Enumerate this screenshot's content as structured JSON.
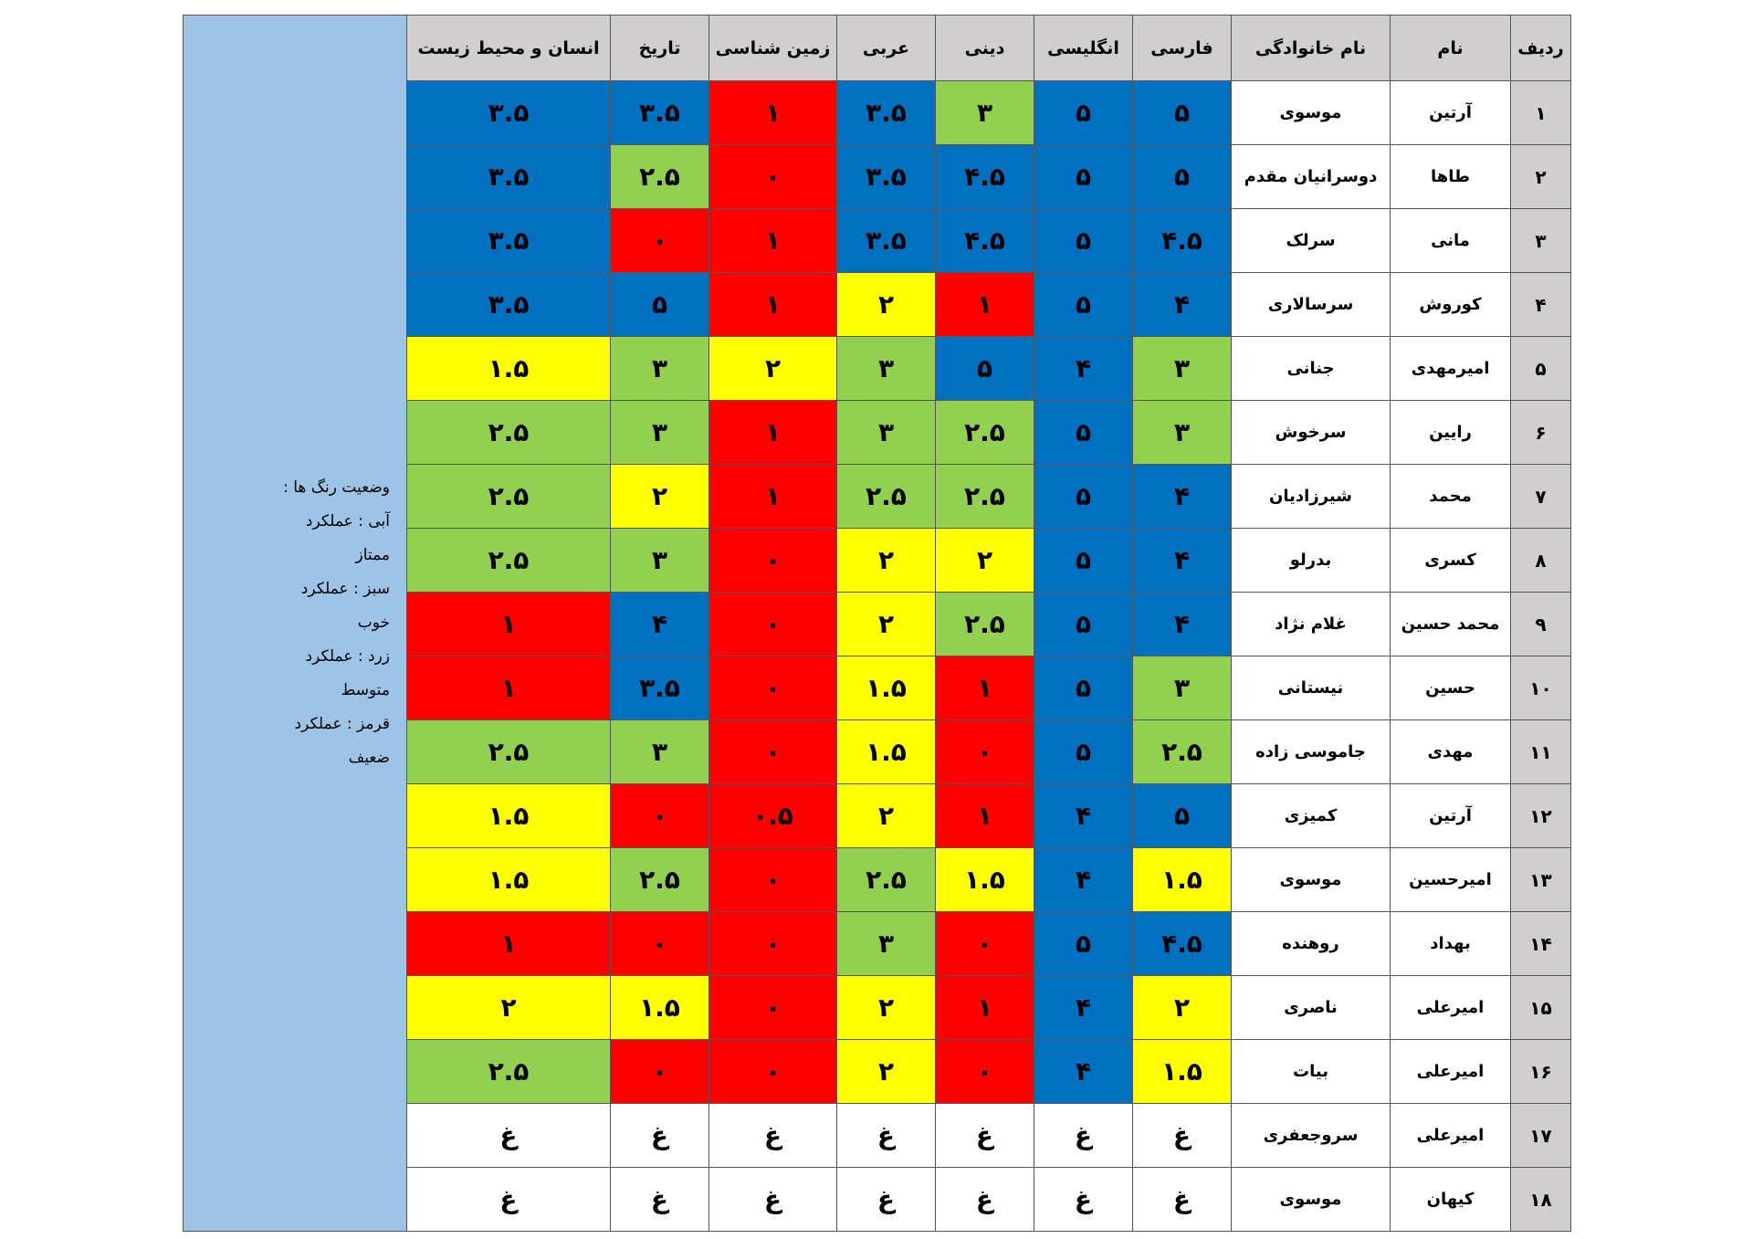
{
  "table": {
    "headers": [
      "ردیف",
      "نام",
      "نام خانوادگی",
      "فارسی",
      "انگلیسی",
      "دینی",
      "عربی",
      "زمین شناسی",
      "تاریخ",
      "انسان و محیط زیست"
    ],
    "palette": {
      "b": "#0070c0",
      "g": "#92d050",
      "y": "#ffff00",
      "r": "#ff0000",
      "w": "#ffffff"
    },
    "rows": [
      {
        "cells": [
          "۱",
          "آرتین",
          "موسوی",
          "۵",
          "۵",
          "۳",
          "۳.۵",
          "۱",
          "۳.۵",
          "۳.۵"
        ],
        "colors": [
          "b",
          "b",
          "g",
          "b",
          "r",
          "b",
          "b"
        ]
      },
      {
        "cells": [
          "۲",
          "طاها",
          "دوسرانیان مقدم",
          "۵",
          "۵",
          "۴.۵",
          "۳.۵",
          "۰",
          "۲.۵",
          "۳.۵"
        ],
        "colors": [
          "b",
          "b",
          "b",
          "b",
          "r",
          "g",
          "b"
        ]
      },
      {
        "cells": [
          "۳",
          "مانی",
          "سرلک",
          "۴.۵",
          "۵",
          "۴.۵",
          "۳.۵",
          "۱",
          "۰",
          "۳.۵"
        ],
        "colors": [
          "b",
          "b",
          "b",
          "b",
          "r",
          "r",
          "b"
        ]
      },
      {
        "cells": [
          "۴",
          "کوروش",
          "سرسالاری",
          "۴",
          "۵",
          "۱",
          "۲",
          "۱",
          "۵",
          "۳.۵"
        ],
        "colors": [
          "b",
          "b",
          "r",
          "y",
          "r",
          "b",
          "b"
        ]
      },
      {
        "cells": [
          "۵",
          "امیرمهدی",
          "جنانی",
          "۳",
          "۴",
          "۵",
          "۳",
          "۲",
          "۳",
          "۱.۵"
        ],
        "colors": [
          "g",
          "b",
          "b",
          "g",
          "y",
          "g",
          "y"
        ]
      },
      {
        "cells": [
          "۶",
          "رایین",
          "سرخوش",
          "۳",
          "۵",
          "۲.۵",
          "۳",
          "۱",
          "۳",
          "۲.۵"
        ],
        "colors": [
          "g",
          "b",
          "g",
          "g",
          "r",
          "g",
          "g"
        ]
      },
      {
        "cells": [
          "۷",
          "محمد",
          "شیرزادیان",
          "۴",
          "۵",
          "۲.۵",
          "۲.۵",
          "۱",
          "۲",
          "۲.۵"
        ],
        "colors": [
          "b",
          "b",
          "g",
          "g",
          "r",
          "y",
          "g"
        ]
      },
      {
        "cells": [
          "۸",
          "کسری",
          "بدرلو",
          "۴",
          "۵",
          "۲",
          "۲",
          "۰",
          "۳",
          "۲.۵"
        ],
        "colors": [
          "b",
          "b",
          "y",
          "y",
          "r",
          "g",
          "g"
        ]
      },
      {
        "cells": [
          "۹",
          "محمد حسین",
          "غلام نژاد",
          "۴",
          "۵",
          "۲.۵",
          "۲",
          "۰",
          "۴",
          "۱"
        ],
        "colors": [
          "b",
          "b",
          "g",
          "y",
          "r",
          "b",
          "r"
        ]
      },
      {
        "cells": [
          "۱۰",
          "حسین",
          "نیستانی",
          "۳",
          "۵",
          "۱",
          "۱.۵",
          "۰",
          "۳.۵",
          "۱"
        ],
        "colors": [
          "g",
          "b",
          "r",
          "y",
          "r",
          "b",
          "r"
        ]
      },
      {
        "cells": [
          "۱۱",
          "مهدی",
          "جاموسی زاده",
          "۲.۵",
          "۵",
          "۰",
          "۱.۵",
          "۰",
          "۳",
          "۲.۵"
        ],
        "colors": [
          "g",
          "b",
          "r",
          "y",
          "r",
          "g",
          "g"
        ]
      },
      {
        "cells": [
          "۱۲",
          "آرتین",
          "کمیزی",
          "۵",
          "۴",
          "۱",
          "۲",
          "۰.۵",
          "۰",
          "۱.۵"
        ],
        "colors": [
          "b",
          "b",
          "r",
          "y",
          "r",
          "r",
          "y"
        ]
      },
      {
        "cells": [
          "۱۳",
          "امیرحسین",
          "موسوی",
          "۱.۵",
          "۴",
          "۱.۵",
          "۲.۵",
          "۰",
          "۲.۵",
          "۱.۵"
        ],
        "colors": [
          "y",
          "b",
          "y",
          "g",
          "r",
          "g",
          "y"
        ]
      },
      {
        "cells": [
          "۱۴",
          "بهداد",
          "روهنده",
          "۴.۵",
          "۵",
          "۰",
          "۳",
          "۰",
          "۰",
          "۱"
        ],
        "colors": [
          "b",
          "b",
          "r",
          "g",
          "r",
          "r",
          "r"
        ]
      },
      {
        "cells": [
          "۱۵",
          "امیرعلی",
          "ناصری",
          "۲",
          "۴",
          "۱",
          "۲",
          "۰",
          "۱.۵",
          "۲"
        ],
        "colors": [
          "y",
          "b",
          "r",
          "y",
          "r",
          "y",
          "y"
        ]
      },
      {
        "cells": [
          "۱۶",
          "امیرعلی",
          "بیات",
          "۱.۵",
          "۴",
          "۰",
          "۲",
          "۰",
          "۰",
          "۲.۵"
        ],
        "colors": [
          "y",
          "b",
          "r",
          "y",
          "r",
          "r",
          "g"
        ]
      },
      {
        "cells": [
          "۱۷",
          "امیرعلی",
          "سروجعفری",
          "غ",
          "غ",
          "غ",
          "غ",
          "غ",
          "غ",
          "غ"
        ],
        "colors": [
          "w",
          "w",
          "w",
          "w",
          "w",
          "w",
          "w"
        ]
      },
      {
        "cells": [
          "۱۸",
          "کیهان",
          "موسوی",
          "غ",
          "غ",
          "غ",
          "غ",
          "غ",
          "غ",
          "غ"
        ],
        "colors": [
          "w",
          "w",
          "w",
          "w",
          "w",
          "w",
          "w"
        ]
      }
    ],
    "legend": {
      "title": "وضعیت رنگ ها :",
      "items": [
        "آبی : عملکرد ممتاز",
        "سبز : عملکرد خوب",
        "زرد : عملکرد متوسط",
        "قرمز : عملکرد ضعیف"
      ]
    }
  }
}
